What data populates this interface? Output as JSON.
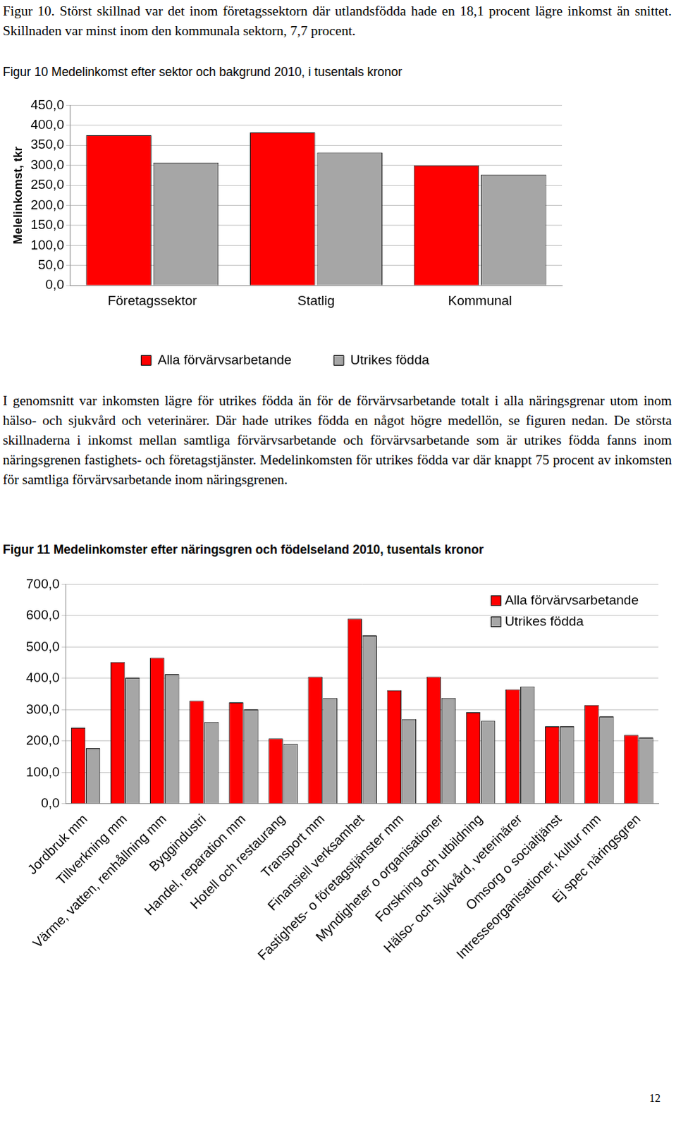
{
  "document": {
    "intro": "Figur 10. Störst skillnad var det inom företagssektorn där utlandsfödda hade en 18,1 procent lägre inkomst än snittet. Skillnaden var minst inom den kommunala sektorn, 7,7 procent.",
    "paragraph": "I genomsnitt var inkomsten lägre för utrikes födda än för de förvärvsarbetande totalt i alla näringsgrenar utom inom hälso- och sjukvård och veterinärer. Där hade utrikes födda en något högre medellön, se figuren nedan. De största skillnaderna i inkomst mellan samtliga förvärvsarbetande och förvärvsarbetande som är utrikes födda fanns inom näringsgrenen fastighets- och företagstjänster. Medelinkomsten för utrikes födda var där knappt 75 procent av inkomsten för samtliga förvärvsarbetande inom näringsgrenen.",
    "page_number": "12"
  },
  "chart_data": [
    {
      "type": "bar",
      "title": "Figur 10 Medelinkomst efter sektor och bakgrund 2010, i tusentals kronor",
      "y_label": "Melelinkomst, tkr",
      "categories": [
        "Företagssektor",
        "Statlig",
        "Kommunal"
      ],
      "series": [
        {
          "name": "Alla förvärvsarbetande",
          "color": "#ff0000",
          "values": [
            375,
            382,
            300
          ]
        },
        {
          "name": "Utrikes födda",
          "color": "#a6a6a6",
          "values": [
            307,
            332,
            277
          ]
        }
      ],
      "ylim": [
        0,
        450
      ],
      "yticks": [
        {
          "value": 0,
          "label": "0,0"
        },
        {
          "value": 50,
          "label": "50,0"
        },
        {
          "value": 100,
          "label": "100,0"
        },
        {
          "value": 150,
          "label": "150,0"
        },
        {
          "value": 200,
          "label": "200,0"
        },
        {
          "value": 250,
          "label": "250,0"
        },
        {
          "value": 300,
          "label": "300,0"
        },
        {
          "value": 350,
          "label": "350,0"
        },
        {
          "value": 400,
          "label": "400,0"
        },
        {
          "value": 450,
          "label": "450,0"
        }
      ],
      "grid": true,
      "legend": "bottom"
    },
    {
      "type": "bar",
      "title": "Figur 11 Medelinkomster efter näringsgren och födelseland 2010, tusentals kronor",
      "categories": [
        "Jordbruk mm",
        "Tillverkning mm",
        "Värme, vatten, renhållning mm",
        "Byggindustri",
        "Handel, reparation mm",
        "Hotell och restaurang",
        "Transport mm",
        "Finansiell verksamhet",
        "Fastighets- o företagstjänster mm",
        "Myndigheter o organisationer",
        "Forskning och utbildning",
        "Hälso- och sjukvård, veterinärer",
        "Omsorg o socialtjänst",
        "Intresseorganisationer, kultur mm",
        "Ej spec näringsgren"
      ],
      "series": [
        {
          "name": "Alla förvärvsarbetande",
          "color": "#ff0000",
          "values": [
            242,
            452,
            466,
            329,
            323,
            208,
            405,
            590,
            362,
            405,
            292,
            365,
            247,
            315,
            219
          ]
        },
        {
          "name": "Utrikes födda",
          "color": "#a6a6a6",
          "values": [
            177,
            402,
            413,
            261,
            301,
            191,
            337,
            537,
            270,
            337,
            264,
            374,
            247,
            278,
            211
          ]
        }
      ],
      "ylim": [
        0,
        700
      ],
      "yticks": [
        {
          "value": 0,
          "label": "0,0"
        },
        {
          "value": 100,
          "label": "100,0"
        },
        {
          "value": 200,
          "label": "200,0"
        },
        {
          "value": 300,
          "label": "300,0"
        },
        {
          "value": 400,
          "label": "400,0"
        },
        {
          "value": 500,
          "label": "500,0"
        },
        {
          "value": 600,
          "label": "600,0"
        },
        {
          "value": 700,
          "label": "700,0"
        }
      ],
      "grid": true,
      "legend": "upper right"
    }
  ]
}
